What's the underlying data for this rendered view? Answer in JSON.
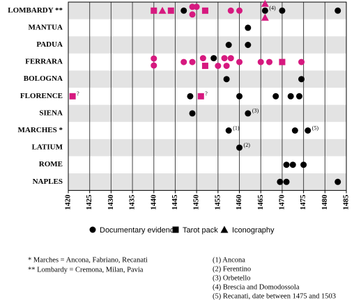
{
  "chart_data": {
    "type": "dot-timeline",
    "categories": [
      "LOMBARDY **",
      "MANTUA",
      "PADUA",
      "FERRARA",
      "BOLOGNA",
      "FLORENCE",
      "SIENA",
      "MARCHES *",
      "LATIUM",
      "ROME",
      "NAPLES"
    ],
    "xlim": [
      1420,
      1485
    ],
    "xticks": [
      1420,
      1425,
      1430,
      1435,
      1440,
      1445,
      1450,
      1455,
      1460,
      1465,
      1470,
      1475,
      1480,
      1485
    ],
    "band_color": "#e3e3e3",
    "series": [
      {
        "name": "Documentary evidence",
        "marker": "circle",
        "color": "#000000",
        "x": [
          1447,
          1449,
          1449,
          1450,
          1458,
          1460,
          1466,
          1470,
          1483,
          1462,
          1457.5,
          1462,
          1440,
          1440,
          1447,
          1449,
          1451.5,
          1454,
          1455,
          1456.5,
          1457,
          1458,
          1460,
          1465,
          1467,
          1474.5,
          1457,
          1474.5,
          1448.5,
          1460,
          1468.5,
          1472,
          1474,
          1449,
          1462,
          1457.5,
          1473,
          1476,
          1460,
          1471,
          1472.5,
          1475,
          1469.5,
          1471,
          1483
        ],
        "y": [
          "LOMBARDY **",
          "LOMBARDY **",
          "LOMBARDY **",
          "LOMBARDY **",
          "LOMBARDY **",
          "LOMBARDY **",
          "LOMBARDY **",
          "LOMBARDY **",
          "LOMBARDY **",
          "MANTUA",
          "PADUA",
          "PADUA",
          "FERRARA",
          "FERRARA",
          "FERRARA",
          "FERRARA",
          "FERRARA",
          "FERRARA",
          "FERRARA",
          "FERRARA",
          "FERRARA",
          "FERRARA",
          "FERRARA",
          "FERRARA",
          "FERRARA",
          "FERRARA",
          "BOLOGNA",
          "BOLOGNA",
          "FLORENCE",
          "FLORENCE",
          "FLORENCE",
          "FLORENCE",
          "FLORENCE",
          "SIENA",
          "SIENA",
          "MARCHES *",
          "MARCHES *",
          "MARCHES *",
          "LATIUM",
          "ROME",
          "ROME",
          "ROME",
          "NAPLES",
          "NAPLES",
          "NAPLES"
        ],
        "colors": [
          "#000000",
          "#d6197f",
          "#d6197f",
          "#d6197f",
          "#d6197f",
          "#d6197f",
          "#000000",
          "#000000",
          "#000000",
          "#000000",
          "#000000",
          "#000000",
          "#d6197f",
          "#d6197f",
          "#d6197f",
          "#d6197f",
          "#d6197f",
          "#000000",
          "#d6197f",
          "#d6197f",
          "#d6197f",
          "#d6197f",
          "#d6197f",
          "#d6197f",
          "#d6197f",
          "#d6197f",
          "#000000",
          "#000000",
          "#000000",
          "#000000",
          "#000000",
          "#000000",
          "#000000",
          "#000000",
          "#000000",
          "#000000",
          "#000000",
          "#000000",
          "#000000",
          "#000000",
          "#000000",
          "#000000",
          "#000000",
          "#000000",
          "#000000"
        ],
        "point_labels": [
          null,
          null,
          null,
          null,
          null,
          null,
          "(4)",
          null,
          null,
          null,
          null,
          null,
          null,
          null,
          null,
          null,
          null,
          null,
          null,
          null,
          null,
          null,
          null,
          null,
          null,
          null,
          null,
          null,
          null,
          null,
          null,
          null,
          null,
          null,
          "(3)",
          "(1)",
          null,
          "(5)",
          "(2)",
          null,
          null,
          null,
          null,
          null,
          null
        ]
      },
      {
        "name": "Tarot pack",
        "marker": "square",
        "color": "#000000",
        "x": [
          1440,
          1444,
          1452,
          1452,
          1470,
          1421,
          1451
        ],
        "y": [
          "LOMBARDY **",
          "LOMBARDY **",
          "LOMBARDY **",
          "FERRARA",
          "FERRARA",
          "FLORENCE",
          "FLORENCE"
        ],
        "colors": [
          "#d6197f",
          "#d6197f",
          "#d6197f",
          "#d6197f",
          "#d6197f",
          "#d6197f",
          "#d6197f"
        ],
        "point_labels": [
          null,
          null,
          null,
          null,
          null,
          "?",
          "?"
        ]
      },
      {
        "name": "Iconography",
        "marker": "triangle",
        "color": "#000000",
        "x": [
          1442,
          1466,
          1466
        ],
        "y": [
          "LOMBARDY **",
          "LOMBARDY **",
          "LOMBARDY **"
        ],
        "colors": [
          "#d6197f",
          "#d6197f",
          "#d6197f"
        ],
        "point_labels": [
          null,
          null,
          null
        ]
      }
    ],
    "notes_left": [
      "*   Marches = Ancona, Fabriano, Recanati",
      "** Lombardy = Cremona, Milan, Pavia"
    ],
    "notes_right": [
      "(1) Ancona",
      "(2) Ferentino",
      "(3) Orbetello",
      "(4) Brescia and Domodossola",
      "(5) Recanati, date between 1475 and 1503"
    ]
  }
}
